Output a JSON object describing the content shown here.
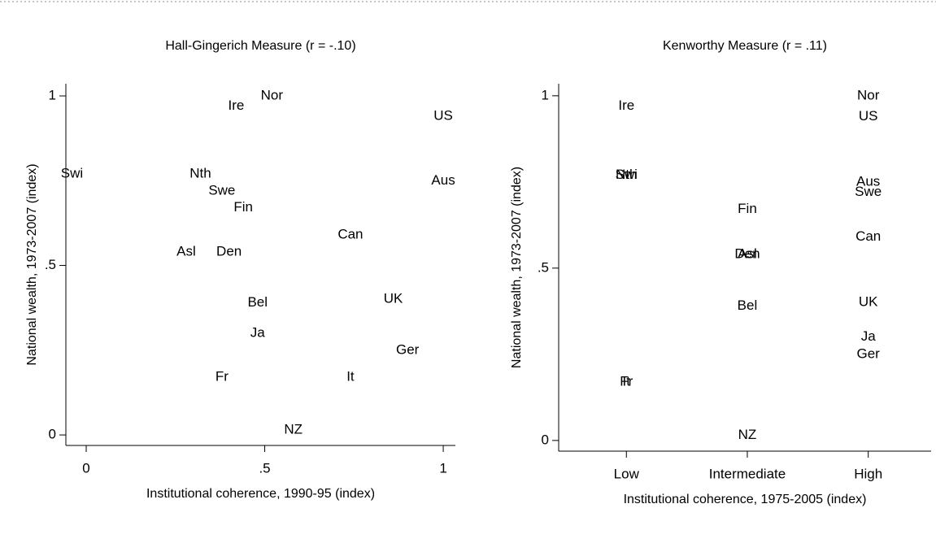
{
  "chart_data": [
    {
      "type": "scatter",
      "title": "Hall-Gingerich Measure (r = -.10)",
      "xlabel": "Institutional coherence, 1990-95 (index)",
      "ylabel": "National wealth, 1973-2007 (index)",
      "labels": [
        "Swi",
        "Nth",
        "Swe",
        "Fin",
        "Ire",
        "Nor",
        "US",
        "Aus",
        "Can",
        "Asl",
        "Den",
        "Bel",
        "UK",
        "Ja",
        "Ger",
        "Fr",
        "It",
        "NZ"
      ],
      "x": [
        -0.04,
        0.32,
        0.38,
        0.44,
        0.42,
        0.52,
        1.0,
        1.0,
        0.74,
        0.28,
        0.4,
        0.48,
        0.86,
        0.48,
        0.9,
        0.38,
        0.74,
        0.58
      ],
      "values": [
        0.77,
        0.77,
        0.72,
        0.67,
        0.97,
        1.0,
        0.94,
        0.75,
        0.59,
        0.54,
        0.54,
        0.39,
        0.4,
        0.3,
        0.25,
        0.17,
        0.17,
        0.015
      ],
      "xlim": [
        -0.057,
        1.034
      ],
      "ylim": [
        -0.031,
        1.036
      ],
      "xticks": [
        0,
        {
          "value": 0.5,
          "label": ".5"
        },
        1
      ],
      "yticks": [
        0,
        {
          "value": 0.5,
          "label": ".5"
        },
        1
      ]
    },
    {
      "type": "scatter",
      "title": "Kenworthy Measure (r = .11)",
      "xlabel": "Institutional coherence, 1975-2005 (index)",
      "ylabel": "National wealth, 1973-2007 (index)",
      "labels": [
        "Ire",
        "Swi",
        "Nth",
        "Fr",
        "It",
        "Fin",
        "Den",
        "Asl",
        "Bel",
        "NZ",
        "Nor",
        "US",
        "Aus",
        "Swe",
        "Can",
        "UK",
        "Ja",
        "Ger"
      ],
      "x": [
        1,
        1,
        1,
        1,
        1,
        2,
        2,
        2,
        2,
        2,
        3,
        3,
        3,
        3,
        3,
        3,
        3,
        3
      ],
      "values": [
        0.97,
        0.77,
        0.77,
        0.17,
        0.17,
        0.67,
        0.54,
        0.54,
        0.39,
        0.015,
        1.0,
        0.94,
        0.75,
        0.72,
        0.59,
        0.4,
        0.3,
        0.25
      ],
      "xlim": [
        0.44,
        3.52
      ],
      "ylim": [
        -0.031,
        1.035
      ],
      "xticks": [
        {
          "value": 1,
          "label": "Low"
        },
        {
          "value": 2,
          "label": "Intermediate"
        },
        {
          "value": 3,
          "label": "High"
        }
      ],
      "yticks": [
        0,
        {
          "value": 0.5,
          "label": ".5"
        },
        1
      ]
    }
  ]
}
